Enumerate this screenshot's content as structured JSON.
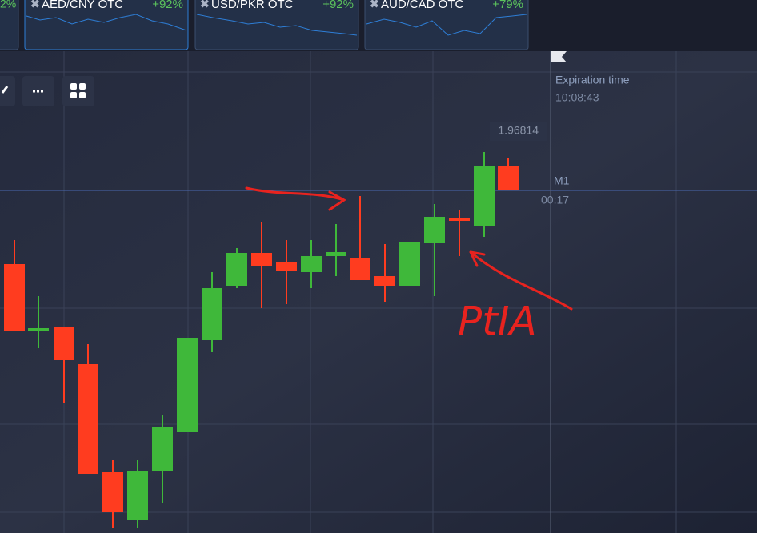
{
  "tabs": [
    {
      "name": "",
      "payout": "2%"
    },
    {
      "name": "AED/CNY OTC",
      "payout": "+92%"
    },
    {
      "name": "USD/PKR OTC",
      "payout": "+92%"
    },
    {
      "name": "AUD/CAD OTC",
      "payout": "+79%"
    }
  ],
  "expiration": {
    "label": "Expiration time",
    "time": "10:08:43"
  },
  "price_label": "1.96814",
  "timeframe": "M1",
  "timer": "00:17",
  "annotation": "PtIA"
}
